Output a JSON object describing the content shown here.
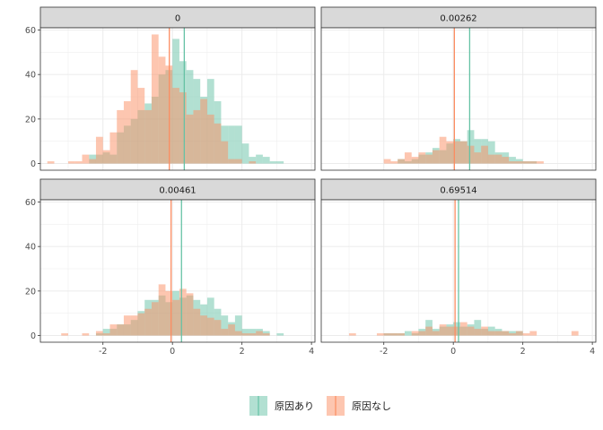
{
  "colors": {
    "teal": "#66c2a5",
    "orange": "#fc8d62",
    "strip_fill": "#d9d9d9",
    "grid": "#ebebeb",
    "panel_border": "#333333"
  },
  "legend": {
    "items": [
      {
        "label": "原因あり",
        "color": "#66c2a5"
      },
      {
        "label": "原因なし",
        "color": "#fc8d62"
      }
    ]
  },
  "chart_data": {
    "type": "histogram",
    "bin_width": 0.2,
    "xlim": [
      -3.8,
      4.1
    ],
    "ylim": [
      -3,
      61
    ],
    "x_ticks": [
      -2,
      0,
      2,
      4
    ],
    "y_ticks": [
      0,
      20,
      40,
      60
    ],
    "x_tick_labels": [
      "-2",
      "0",
      "2",
      "4"
    ],
    "y_tick_labels": [
      "0",
      "20",
      "40",
      "60"
    ],
    "grid": true,
    "legend_position": "bottom",
    "opacity": 0.5,
    "panels": [
      {
        "strip": "0",
        "bin_starts": [
          -3.6,
          -3.4,
          -3.2,
          -3.0,
          -2.8,
          -2.6,
          -2.4,
          -2.2,
          -2.0,
          -1.8,
          -1.6,
          -1.4,
          -1.2,
          -1.0,
          -0.8,
          -0.6,
          -0.4,
          -0.2,
          0.0,
          0.2,
          0.4,
          0.6,
          0.8,
          1.0,
          1.2,
          1.4,
          1.6,
          1.8,
          2.0,
          2.2,
          2.4,
          2.6,
          2.8,
          3.0,
          3.2,
          3.4
        ],
        "series": [
          {
            "name": "原因あり",
            "color": "#66c2a5",
            "counts": [
              0,
              0,
              0,
              0,
              0,
              0,
              4,
              4,
              5,
              4,
              14,
              17,
              20,
              24,
              27,
              30,
              40,
              42,
              56,
              46,
              42,
              38,
              30,
              38,
              28,
              17,
              17,
              17,
              9,
              3,
              4,
              3,
              1,
              1,
              0,
              0
            ],
            "mean": 0.34
          },
          {
            "name": "原因なし",
            "color": "#fc8d62",
            "counts": [
              1,
              0,
              0,
              1,
              1,
              4,
              2,
              12,
              6,
              14,
              24,
              28,
              42,
              34,
              24,
              58,
              48,
              44,
              34,
              32,
              22,
              24,
              29,
              22,
              18,
              10,
              2,
              2,
              0,
              1,
              0,
              0,
              0,
              0,
              0,
              0
            ],
            "mean": -0.09
          }
        ]
      },
      {
        "strip": "0.00262",
        "bin_starts": [
          -3.6,
          -3.4,
          -3.2,
          -3.0,
          -2.8,
          -2.6,
          -2.4,
          -2.2,
          -2.0,
          -1.8,
          -1.6,
          -1.4,
          -1.2,
          -1.0,
          -0.8,
          -0.6,
          -0.4,
          -0.2,
          0.0,
          0.2,
          0.4,
          0.6,
          0.8,
          1.0,
          1.2,
          1.4,
          1.6,
          1.8,
          2.0,
          2.2,
          2.4,
          2.6,
          2.8,
          3.0,
          3.2,
          3.4
        ],
        "series": [
          {
            "name": "原因あり",
            "color": "#66c2a5",
            "counts": [
              0,
              0,
              0,
              0,
              0,
              0,
              0,
              0,
              0,
              0,
              2,
              1,
              2,
              4,
              5,
              7,
              6,
              9,
              11,
              10,
              15,
              11,
              11,
              10,
              5,
              5,
              3,
              2,
              1,
              1,
              0,
              0,
              0,
              0,
              0,
              0
            ],
            "mean": 0.47
          },
          {
            "name": "原因なし",
            "color": "#fc8d62",
            "counts": [
              0,
              0,
              0,
              0,
              0,
              0,
              0,
              0,
              2,
              1,
              2,
              5,
              3,
              5,
              4,
              6,
              12,
              10,
              10,
              10,
              8,
              5,
              8,
              4,
              4,
              3,
              1,
              1,
              1,
              1,
              1,
              0,
              0,
              0,
              0,
              0
            ],
            "mean": 0.03
          }
        ]
      },
      {
        "strip": "0.00461",
        "bin_starts": [
          -3.6,
          -3.4,
          -3.2,
          -3.0,
          -2.8,
          -2.6,
          -2.4,
          -2.2,
          -2.0,
          -1.8,
          -1.6,
          -1.4,
          -1.2,
          -1.0,
          -0.8,
          -0.6,
          -0.4,
          -0.2,
          0.0,
          0.2,
          0.4,
          0.6,
          0.8,
          1.0,
          1.2,
          1.4,
          1.6,
          1.8,
          2.0,
          2.2,
          2.4,
          2.6,
          2.8,
          3.0,
          3.2,
          3.4
        ],
        "series": [
          {
            "name": "原因あり",
            "color": "#66c2a5",
            "counts": [
              0,
              0,
              0,
              0,
              0,
              0,
              0,
              1,
              3,
              3,
              5,
              5,
              7,
              11,
              16,
              16,
              18,
              15,
              20,
              17,
              18,
              16,
              14,
              17,
              12,
              9,
              6,
              9,
              3,
              3,
              3,
              2,
              0,
              1,
              0,
              0
            ],
            "mean": 0.26
          },
          {
            "name": "原因なし",
            "color": "#fc8d62",
            "counts": [
              0,
              0,
              1,
              0,
              0,
              1,
              0,
              2,
              1,
              5,
              5,
              9,
              9,
              10,
              12,
              15,
              23,
              20,
              16,
              21,
              19,
              12,
              9,
              8,
              7,
              3,
              5,
              2,
              1,
              1,
              2,
              1,
              0,
              0,
              0,
              0
            ],
            "mean": -0.04
          }
        ]
      },
      {
        "strip": "0.69514",
        "bin_starts": [
          -3.6,
          -3.4,
          -3.2,
          -3.0,
          -2.8,
          -2.6,
          -2.4,
          -2.2,
          -2.0,
          -1.8,
          -1.6,
          -1.4,
          -1.2,
          -1.0,
          -0.8,
          -0.6,
          -0.4,
          -0.2,
          0.0,
          0.2,
          0.4,
          0.6,
          0.8,
          1.0,
          1.2,
          1.4,
          1.6,
          1.8,
          2.0,
          2.2,
          2.4,
          2.6,
          2.8,
          3.0,
          3.2,
          3.4
        ],
        "series": [
          {
            "name": "原因あり",
            "color": "#66c2a5",
            "counts": [
              0,
              0,
              0,
              0,
              0,
              0,
              0,
              0,
              1,
              1,
              1,
              2,
              1,
              3,
              7,
              3,
              4,
              5,
              6,
              4,
              5,
              7,
              3,
              4,
              3,
              2,
              2,
              2,
              0,
              0,
              0,
              0,
              0,
              0,
              0,
              0
            ],
            "mean": 0.15
          },
          {
            "name": "原因なし",
            "color": "#fc8d62",
            "counts": [
              0,
              0,
              0,
              1,
              0,
              0,
              0,
              1,
              1,
              1,
              1,
              0,
              2,
              2,
              4,
              2,
              5,
              4,
              4,
              6,
              4,
              3,
              4,
              2,
              2,
              2,
              1,
              2,
              1,
              2,
              0,
              0,
              0,
              0,
              0,
              2
            ],
            "mean": 0.05
          }
        ]
      }
    ]
  }
}
